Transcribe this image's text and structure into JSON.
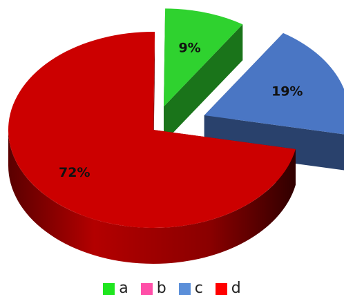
{
  "chart_data": {
    "type": "pie",
    "title": "",
    "categories": [
      "a",
      "b",
      "c",
      "d"
    ],
    "values": [
      9,
      0,
      19,
      72
    ],
    "data_labels": [
      "9%",
      "",
      "19%",
      "72%"
    ],
    "colors": [
      "#2fd22f",
      "#ff3fa0",
      "#4a76c4",
      "#cc0000"
    ],
    "legend_colors": [
      "#1fe61f",
      "#ff4fa8",
      "#5b8fd9",
      "#ff0000"
    ],
    "exploded": true,
    "three_d": true,
    "legend_position": "bottom"
  },
  "legend": {
    "items": [
      {
        "label": "a",
        "color": "#1fe61f"
      },
      {
        "label": "b",
        "color": "#ff4fa8"
      },
      {
        "label": "c",
        "color": "#5b8fd9"
      },
      {
        "label": "d",
        "color": "#ff0000"
      }
    ]
  }
}
